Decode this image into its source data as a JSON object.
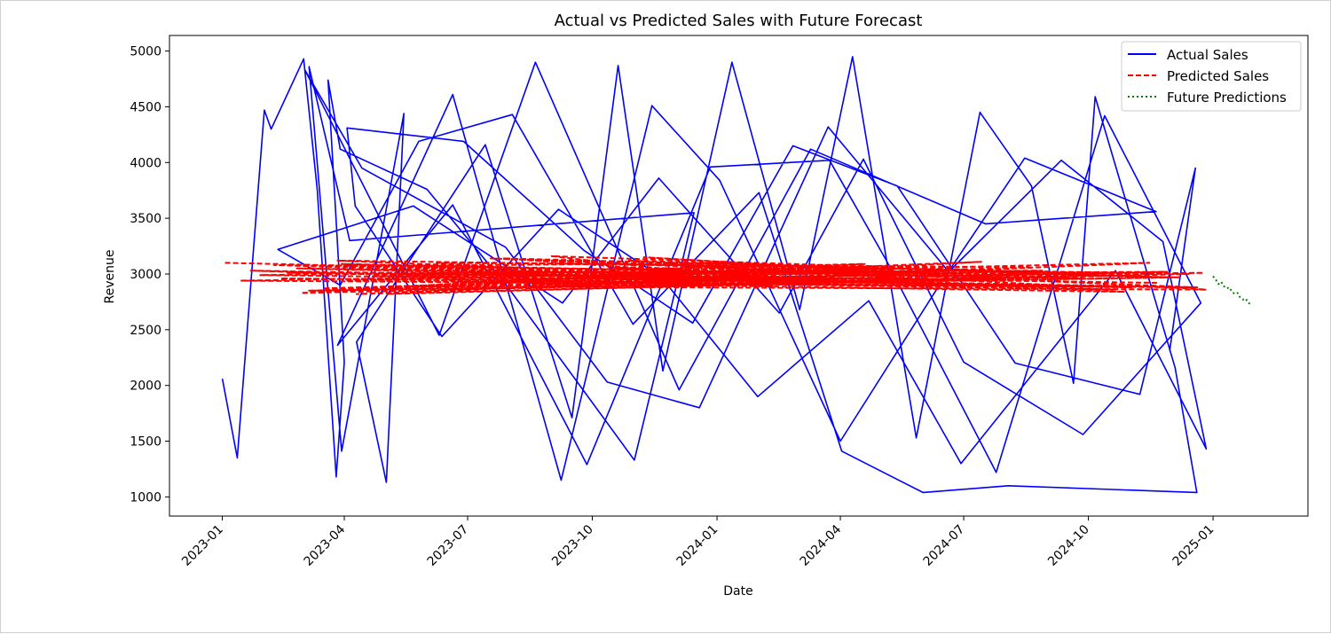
{
  "chart_data": {
    "type": "line",
    "title": "Actual vs Predicted Sales with Future Forecast",
    "xlabel": "Date",
    "ylabel": "Revenue",
    "xlim": [
      "2022-11-23",
      "2025-03-12"
    ],
    "ylim": [
      828,
      5140
    ],
    "x_ticks": [
      "2023-01",
      "2023-04",
      "2023-07",
      "2023-10",
      "2024-01",
      "2024-04",
      "2024-07",
      "2024-10",
      "2025-01"
    ],
    "y_ticks": [
      "1000",
      "1500",
      "2000",
      "2500",
      "3000",
      "3500",
      "4000",
      "4500",
      "5000"
    ],
    "grid": false,
    "legend_position": "top-right",
    "colors": {
      "actual": "#0000ff",
      "predicted": "#ff0000",
      "future": "#008000"
    },
    "series": [
      {
        "name": "Actual Sales",
        "style": "solid",
        "x": [
          "2023-01-01",
          "2023-01-12",
          "2023-02-01",
          "2023-02-06",
          "2023-03-02",
          "2023-03-12",
          "2023-03-26",
          "2023-04-01",
          "2023-03-20",
          "2023-03-29",
          "2023-06-01",
          "2023-08-01",
          "2023-11-01",
          "2023-12-15",
          "2023-04-05",
          "2023-03-06",
          "2023-03-30",
          "2023-05-15",
          "2023-05-02",
          "2023-04-10",
          "2023-07-14",
          "2023-09-16",
          "2023-10-20",
          "2023-11-22",
          "2024-01-12",
          "2024-03-02",
          "2024-04-10",
          "2024-05-27",
          "2024-07-13",
          "2024-08-20",
          "2024-09-20",
          "2024-10-06",
          "2024-12-04",
          "2024-12-20",
          "2024-08-03",
          "2024-06-01",
          "2024-04-02",
          "2024-02-01",
          "2023-10-31",
          "2023-08-03",
          "2023-05-26",
          "2023-03-29",
          "2023-02-11",
          "2023-05-22",
          "2023-09-09",
          "2023-11-19",
          "2024-02-16",
          "2024-04-18",
          "2024-07-01",
          "2024-09-27",
          "2024-12-23",
          "2024-10-13",
          "2024-07-25",
          "2024-05-05",
          "2024-03-24",
          "2023-12-27",
          "2023-09-27",
          "2023-06-20",
          "2023-03-27",
          "2023-06-20",
          "2023-09-08",
          "2023-11-14",
          "2024-01-03",
          "2024-04-01",
          "2024-06-12",
          "2024-08-15",
          "2024-11-20",
          "2024-07-17",
          "2024-03-10",
          "2023-12-04",
          "2023-08-20",
          "2023-06-10",
          "2023-03-03",
          "2023-04-14",
          "2023-07-29",
          "2023-10-12",
          "2023-12-19",
          "2024-03-23",
          "2024-06-20",
          "2024-09-11",
          "2024-11-25",
          "2024-12-27",
          "2024-10-21",
          "2024-06-29",
          "2024-04-22",
          "2024-01-31",
          "2023-11-21",
          "2023-09-06",
          "2023-06-12",
          "2023-04-09",
          "2023-04-03",
          "2023-06-28",
          "2023-09-25",
          "2023-12-14",
          "2024-02-26",
          "2024-05-13",
          "2024-08-08",
          "2024-11-08",
          "2024-12-19",
          "2024-11-30"
        ],
        "y": [
          2060,
          1350,
          4470,
          4300,
          4930,
          3760,
          1180,
          2210,
          4740,
          4120,
          3760,
          2860,
          1330,
          3550,
          3300,
          4860,
          1410,
          4440,
          1130,
          2390,
          4160,
          1710,
          4870,
          2130,
          4900,
          2680,
          4950,
          1530,
          4450,
          3790,
          2020,
          4590,
          2160,
          1040,
          1100,
          1040,
          1410,
          3730,
          2550,
          4430,
          4190,
          2900,
          3220,
          3610,
          2740,
          3860,
          2650,
          4030,
          2210,
          1560,
          2740,
          4420,
          1220,
          3120,
          4020,
          3960,
          1290,
          3620,
          2360,
          4610,
          1150,
          4510,
          3840,
          1500,
          2880,
          4040,
          3560,
          3450,
          4120,
          1960,
          4900,
          2450,
          4830,
          3950,
          3240,
          2030,
          1800,
          4320,
          3020,
          4020,
          3290,
          1430,
          3030,
          1300,
          2760,
          1900,
          2970,
          3580,
          2440,
          3610,
          4310,
          4190,
          3210,
          2560,
          4150,
          3790,
          2200,
          1920,
          3950,
          2310
        ]
      },
      {
        "name": "Predicted Sales",
        "style": "dashed",
        "x": [
          "2023-01-03",
          "2023-12-20",
          "2023-02-25",
          "2024-05-03",
          "2023-04-22",
          "2024-11-28",
          "2023-03-16",
          "2024-08-18",
          "2023-06-08",
          "2024-02-11",
          "2023-01-22",
          "2024-12-21",
          "2023-09-14",
          "2024-07-14",
          "2023-05-02",
          "2024-10-12",
          "2023-02-08",
          "2024-04-04",
          "2023-07-27",
          "2024-09-19",
          "2023-03-06",
          "2024-12-08",
          "2023-10-15",
          "2024-06-02",
          "2023-04-02",
          "2024-11-15",
          "2023-08-12",
          "2024-03-13",
          "2023-02-18",
          "2024-08-01",
          "2023-11-08",
          "2024-12-27",
          "2023-05-20",
          "2024-01-26",
          "2023-03-27",
          "2024-10-28",
          "2023-06-27",
          "2024-05-22",
          "2023-01-29",
          "2024-09-05",
          "2023-12-01",
          "2024-12-14",
          "2023-04-10",
          "2024-07-01",
          "2023-09-01",
          "2024-02-21",
          "2023-02-13",
          "2024-11-02",
          "2023-07-08",
          "2024-04-19",
          "2023-03-10",
          "2024-12-02",
          "2023-10-28",
          "2024-06-16",
          "2023-05-12",
          "2024-08-28",
          "2023-08-22",
          "2024-01-12",
          "2023-04-17",
          "2024-10-19",
          "2023-06-15",
          "2024-12-25",
          "2023-02-28",
          "2024-03-26",
          "2023-11-20",
          "2024-07-28",
          "2023-03-30",
          "2024-09-27",
          "2023-07-18",
          "2024-12-19",
          "2023-01-15",
          "2024-05-10",
          "2023-10-05",
          "2024-11-21"
        ],
        "y": [
          3100,
          3000,
          3050,
          2930,
          2980,
          3020,
          2870,
          3060,
          3100,
          2890,
          3030,
          2880,
          2960,
          3110,
          2820,
          2990,
          3080,
          2920,
          3140,
          3010,
          2850,
          2970,
          3060,
          2900,
          2940,
          3100,
          2870,
          3020,
          3010,
          2950,
          3150,
          2860,
          2890,
          3070,
          3120,
          2840,
          2930,
          3050,
          2990,
          2900,
          3080,
          3000,
          2820,
          3040,
          3160,
          2920,
          2960,
          2880,
          3010,
          3090,
          2850,
          2970,
          3120,
          2940,
          3000,
          3030,
          2910,
          3100,
          3070,
          2860,
          2950,
          3010,
          2830,
          3060,
          2980,
          2900,
          3090,
          2960,
          3140,
          2880,
          2940,
          3030,
          2990,
          2920
        ]
      },
      {
        "name": "Future Predictions",
        "style": "dotted",
        "x": [
          "2025-01-01",
          "2025-01-03",
          "2025-01-05",
          "2025-01-07",
          "2025-01-09",
          "2025-01-11",
          "2025-01-13",
          "2025-01-15",
          "2025-01-17",
          "2025-01-19",
          "2025-01-21",
          "2025-01-23",
          "2025-01-25",
          "2025-01-27",
          "2025-01-29"
        ],
        "y": [
          2980,
          2950,
          2910,
          2930,
          2890,
          2870,
          2880,
          2840,
          2820,
          2830,
          2790,
          2770,
          2780,
          2740,
          2730
        ]
      }
    ]
  }
}
